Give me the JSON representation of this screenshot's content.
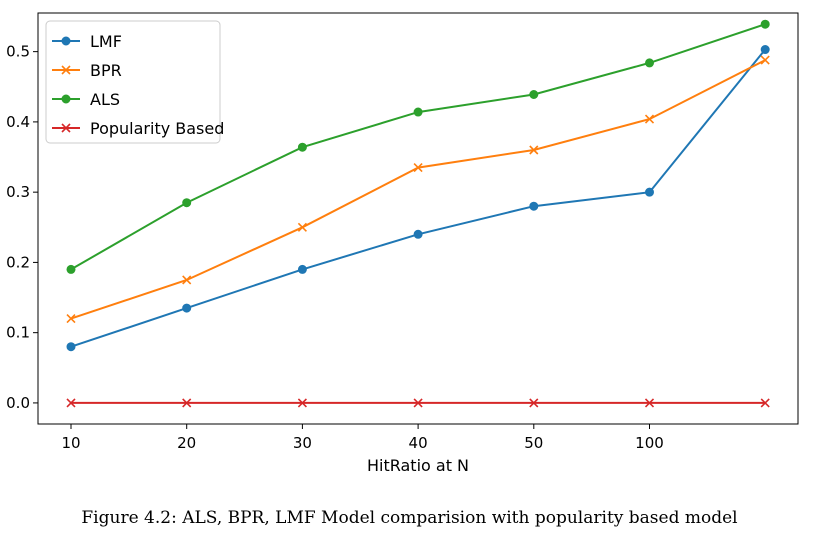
{
  "caption": "Figure 4.2: ALS, BPR, LMF Model comparision with popularity based model",
  "chart_data": {
    "type": "line",
    "xlabel": "HitRatio at N",
    "x_tick_labels": [
      "10",
      "20",
      "30",
      "40",
      "50",
      "100"
    ],
    "y_tick_labels": [
      "0.0",
      "0.1",
      "0.2",
      "0.3",
      "0.4",
      "0.5"
    ],
    "ylim": [
      -0.03,
      0.555
    ],
    "grid": false,
    "legend": "top-left",
    "series": [
      {
        "name": "LMF",
        "color": "#1f77b4",
        "marker": "circle",
        "values": [
          0.08,
          0.135,
          0.19,
          0.24,
          0.28,
          0.3,
          0.503
        ]
      },
      {
        "name": "BPR",
        "color": "#ff7f0e",
        "marker": "x",
        "values": [
          0.12,
          0.175,
          0.25,
          0.335,
          0.36,
          0.404,
          0.488
        ]
      },
      {
        "name": "ALS",
        "color": "#2ca02c",
        "marker": "circle",
        "values": [
          0.19,
          0.285,
          0.364,
          0.414,
          0.439,
          0.484,
          0.539
        ]
      },
      {
        "name": "Popularity Based",
        "color": "#d62728",
        "marker": "x",
        "values": [
          0.0,
          0.0,
          0.0,
          0.0,
          0.0,
          0.0,
          0.0
        ]
      }
    ]
  }
}
